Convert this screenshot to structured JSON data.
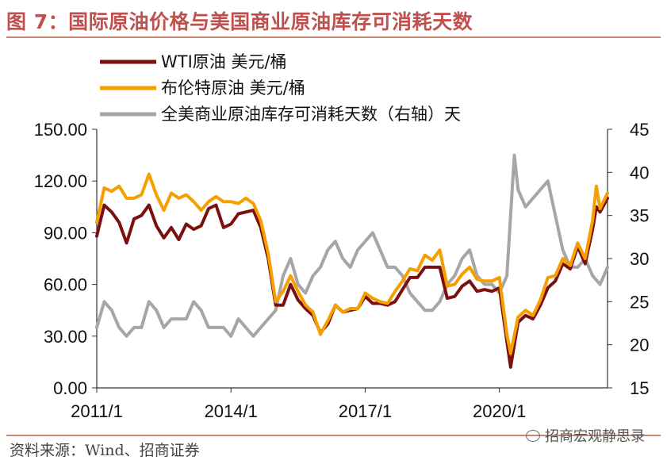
{
  "title": "图 7：国际原油价格与美国商业原油库存可消耗天数",
  "source": "资料来源：Wind、招商证券",
  "watermark": "招商宏观静思录",
  "chart_data": {
    "type": "line",
    "x_ticks": [
      "2011/1",
      "2014/1",
      "2017/1",
      "2020/1"
    ],
    "x_range": [
      "2011-01",
      "2022-06"
    ],
    "y_left": {
      "ticks": [
        "0.00",
        "30.00",
        "60.00",
        "90.00",
        "120.00",
        "150.00"
      ],
      "ylim": [
        0,
        150
      ]
    },
    "y_right": {
      "ticks": [
        "15",
        "20",
        "25",
        "30",
        "35",
        "40",
        "45"
      ],
      "ylim": [
        15,
        45
      ]
    },
    "legend_position": "top-left",
    "series": [
      {
        "name": "WTI原油 美元/桶",
        "axis": "left",
        "color": "#7b1010",
        "x": [
          "2011-01",
          "2011-03",
          "2011-05",
          "2011-07",
          "2011-09",
          "2011-11",
          "2012-01",
          "2012-03",
          "2012-05",
          "2012-07",
          "2012-09",
          "2012-11",
          "2013-01",
          "2013-03",
          "2013-05",
          "2013-07",
          "2013-09",
          "2013-11",
          "2014-01",
          "2014-03",
          "2014-05",
          "2014-07",
          "2014-09",
          "2014-11",
          "2015-01",
          "2015-03",
          "2015-05",
          "2015-07",
          "2015-09",
          "2015-11",
          "2016-01",
          "2016-03",
          "2016-05",
          "2016-07",
          "2016-09",
          "2016-11",
          "2017-01",
          "2017-03",
          "2017-05",
          "2017-07",
          "2017-09",
          "2017-11",
          "2018-01",
          "2018-03",
          "2018-05",
          "2018-07",
          "2018-09",
          "2018-11",
          "2019-01",
          "2019-03",
          "2019-05",
          "2019-07",
          "2019-09",
          "2019-11",
          "2020-01",
          "2020-03",
          "2020-04",
          "2020-06",
          "2020-08",
          "2020-10",
          "2020-12",
          "2021-02",
          "2021-04",
          "2021-06",
          "2021-08",
          "2021-10",
          "2021-12",
          "2022-02",
          "2022-03",
          "2022-04",
          "2022-06"
        ],
        "values": [
          88,
          106,
          102,
          96,
          84,
          98,
          100,
          106,
          94,
          87,
          93,
          86,
          95,
          92,
          94,
          104,
          106,
          93,
          95,
          101,
          102,
          103,
          93,
          75,
          48,
          48,
          60,
          51,
          46,
          42,
          32,
          37,
          48,
          44,
          45,
          46,
          53,
          49,
          49,
          48,
          50,
          57,
          64,
          64,
          70,
          70,
          70,
          52,
          53,
          59,
          62,
          56,
          57,
          56,
          58,
          27,
          12,
          38,
          42,
          40,
          48,
          58,
          62,
          72,
          69,
          82,
          72,
          92,
          105,
          102,
          110
        ]
      },
      {
        "name": "布伦特原油 美元/桶",
        "axis": "left",
        "color": "#f5a000",
        "x": [
          "2011-01",
          "2011-03",
          "2011-05",
          "2011-07",
          "2011-09",
          "2011-11",
          "2012-01",
          "2012-03",
          "2012-05",
          "2012-07",
          "2012-09",
          "2012-11",
          "2013-01",
          "2013-03",
          "2013-05",
          "2013-07",
          "2013-09",
          "2013-11",
          "2014-01",
          "2014-03",
          "2014-05",
          "2014-07",
          "2014-09",
          "2014-11",
          "2015-01",
          "2015-03",
          "2015-05",
          "2015-07",
          "2015-09",
          "2015-11",
          "2016-01",
          "2016-03",
          "2016-05",
          "2016-07",
          "2016-09",
          "2016-11",
          "2017-01",
          "2017-03",
          "2017-05",
          "2017-07",
          "2017-09",
          "2017-11",
          "2018-01",
          "2018-03",
          "2018-05",
          "2018-07",
          "2018-09",
          "2018-11",
          "2019-01",
          "2019-03",
          "2019-05",
          "2019-07",
          "2019-09",
          "2019-11",
          "2020-01",
          "2020-03",
          "2020-04",
          "2020-06",
          "2020-08",
          "2020-10",
          "2020-12",
          "2021-02",
          "2021-04",
          "2021-06",
          "2021-08",
          "2021-10",
          "2021-12",
          "2022-02",
          "2022-03",
          "2022-04",
          "2022-06"
        ],
        "values": [
          96,
          116,
          114,
          117,
          110,
          110,
          112,
          124,
          112,
          103,
          113,
          110,
          112,
          108,
          103,
          108,
          111,
          108,
          108,
          107,
          110,
          107,
          97,
          78,
          50,
          56,
          65,
          56,
          48,
          44,
          31,
          39,
          48,
          44,
          46,
          46,
          55,
          52,
          50,
          49,
          56,
          62,
          69,
          68,
          77,
          74,
          80,
          59,
          60,
          66,
          70,
          63,
          62,
          62,
          64,
          31,
          20,
          41,
          45,
          42,
          51,
          64,
          65,
          75,
          71,
          84,
          75,
          97,
          117,
          104,
          113
        ]
      },
      {
        "name": "全美商业原油库存可消耗天数（右轴）天",
        "axis": "right",
        "color": "#a6a6a6",
        "x": [
          "2011-01",
          "2011-03",
          "2011-05",
          "2011-07",
          "2011-09",
          "2011-11",
          "2012-01",
          "2012-03",
          "2012-05",
          "2012-07",
          "2012-09",
          "2012-11",
          "2013-01",
          "2013-03",
          "2013-05",
          "2013-07",
          "2013-09",
          "2013-11",
          "2014-01",
          "2014-03",
          "2014-05",
          "2014-07",
          "2014-09",
          "2014-11",
          "2015-01",
          "2015-03",
          "2015-05",
          "2015-07",
          "2015-09",
          "2015-11",
          "2016-01",
          "2016-03",
          "2016-05",
          "2016-07",
          "2016-09",
          "2016-11",
          "2017-01",
          "2017-03",
          "2017-05",
          "2017-07",
          "2017-09",
          "2017-11",
          "2018-01",
          "2018-03",
          "2018-05",
          "2018-07",
          "2018-09",
          "2018-11",
          "2019-01",
          "2019-03",
          "2019-05",
          "2019-07",
          "2019-09",
          "2019-11",
          "2020-01",
          "2020-03",
          "2020-05",
          "2020-06",
          "2020-08",
          "2020-10",
          "2020-12",
          "2021-02",
          "2021-04",
          "2021-06",
          "2021-08",
          "2021-10",
          "2021-12",
          "2022-02",
          "2022-04",
          "2022-06"
        ],
        "values": [
          22,
          25,
          24,
          22,
          21,
          22,
          22,
          25,
          24,
          22,
          23,
          23,
          23,
          25,
          24,
          22,
          22,
          22,
          21,
          23,
          22,
          21,
          22,
          23,
          24,
          28,
          30,
          27,
          26,
          28,
          29,
          31,
          32,
          30,
          29,
          31,
          32,
          33,
          31,
          29,
          29,
          28,
          26,
          25,
          24,
          24,
          25,
          27,
          28,
          30,
          31,
          28,
          27,
          27,
          26,
          28,
          42,
          38,
          36,
          37,
          38,
          39,
          35,
          31,
          29,
          29,
          30,
          28,
          27,
          29
        ]
      }
    ]
  }
}
